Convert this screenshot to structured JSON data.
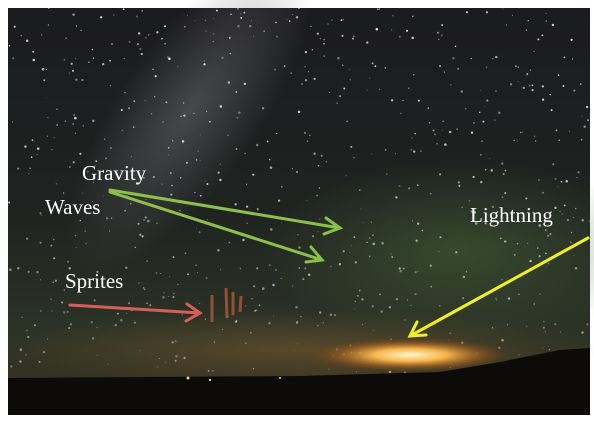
{
  "labels": {
    "gravity": "Gravity",
    "waves": "Waves",
    "sprites": "Sprites",
    "lightning": "Lightning"
  }
}
